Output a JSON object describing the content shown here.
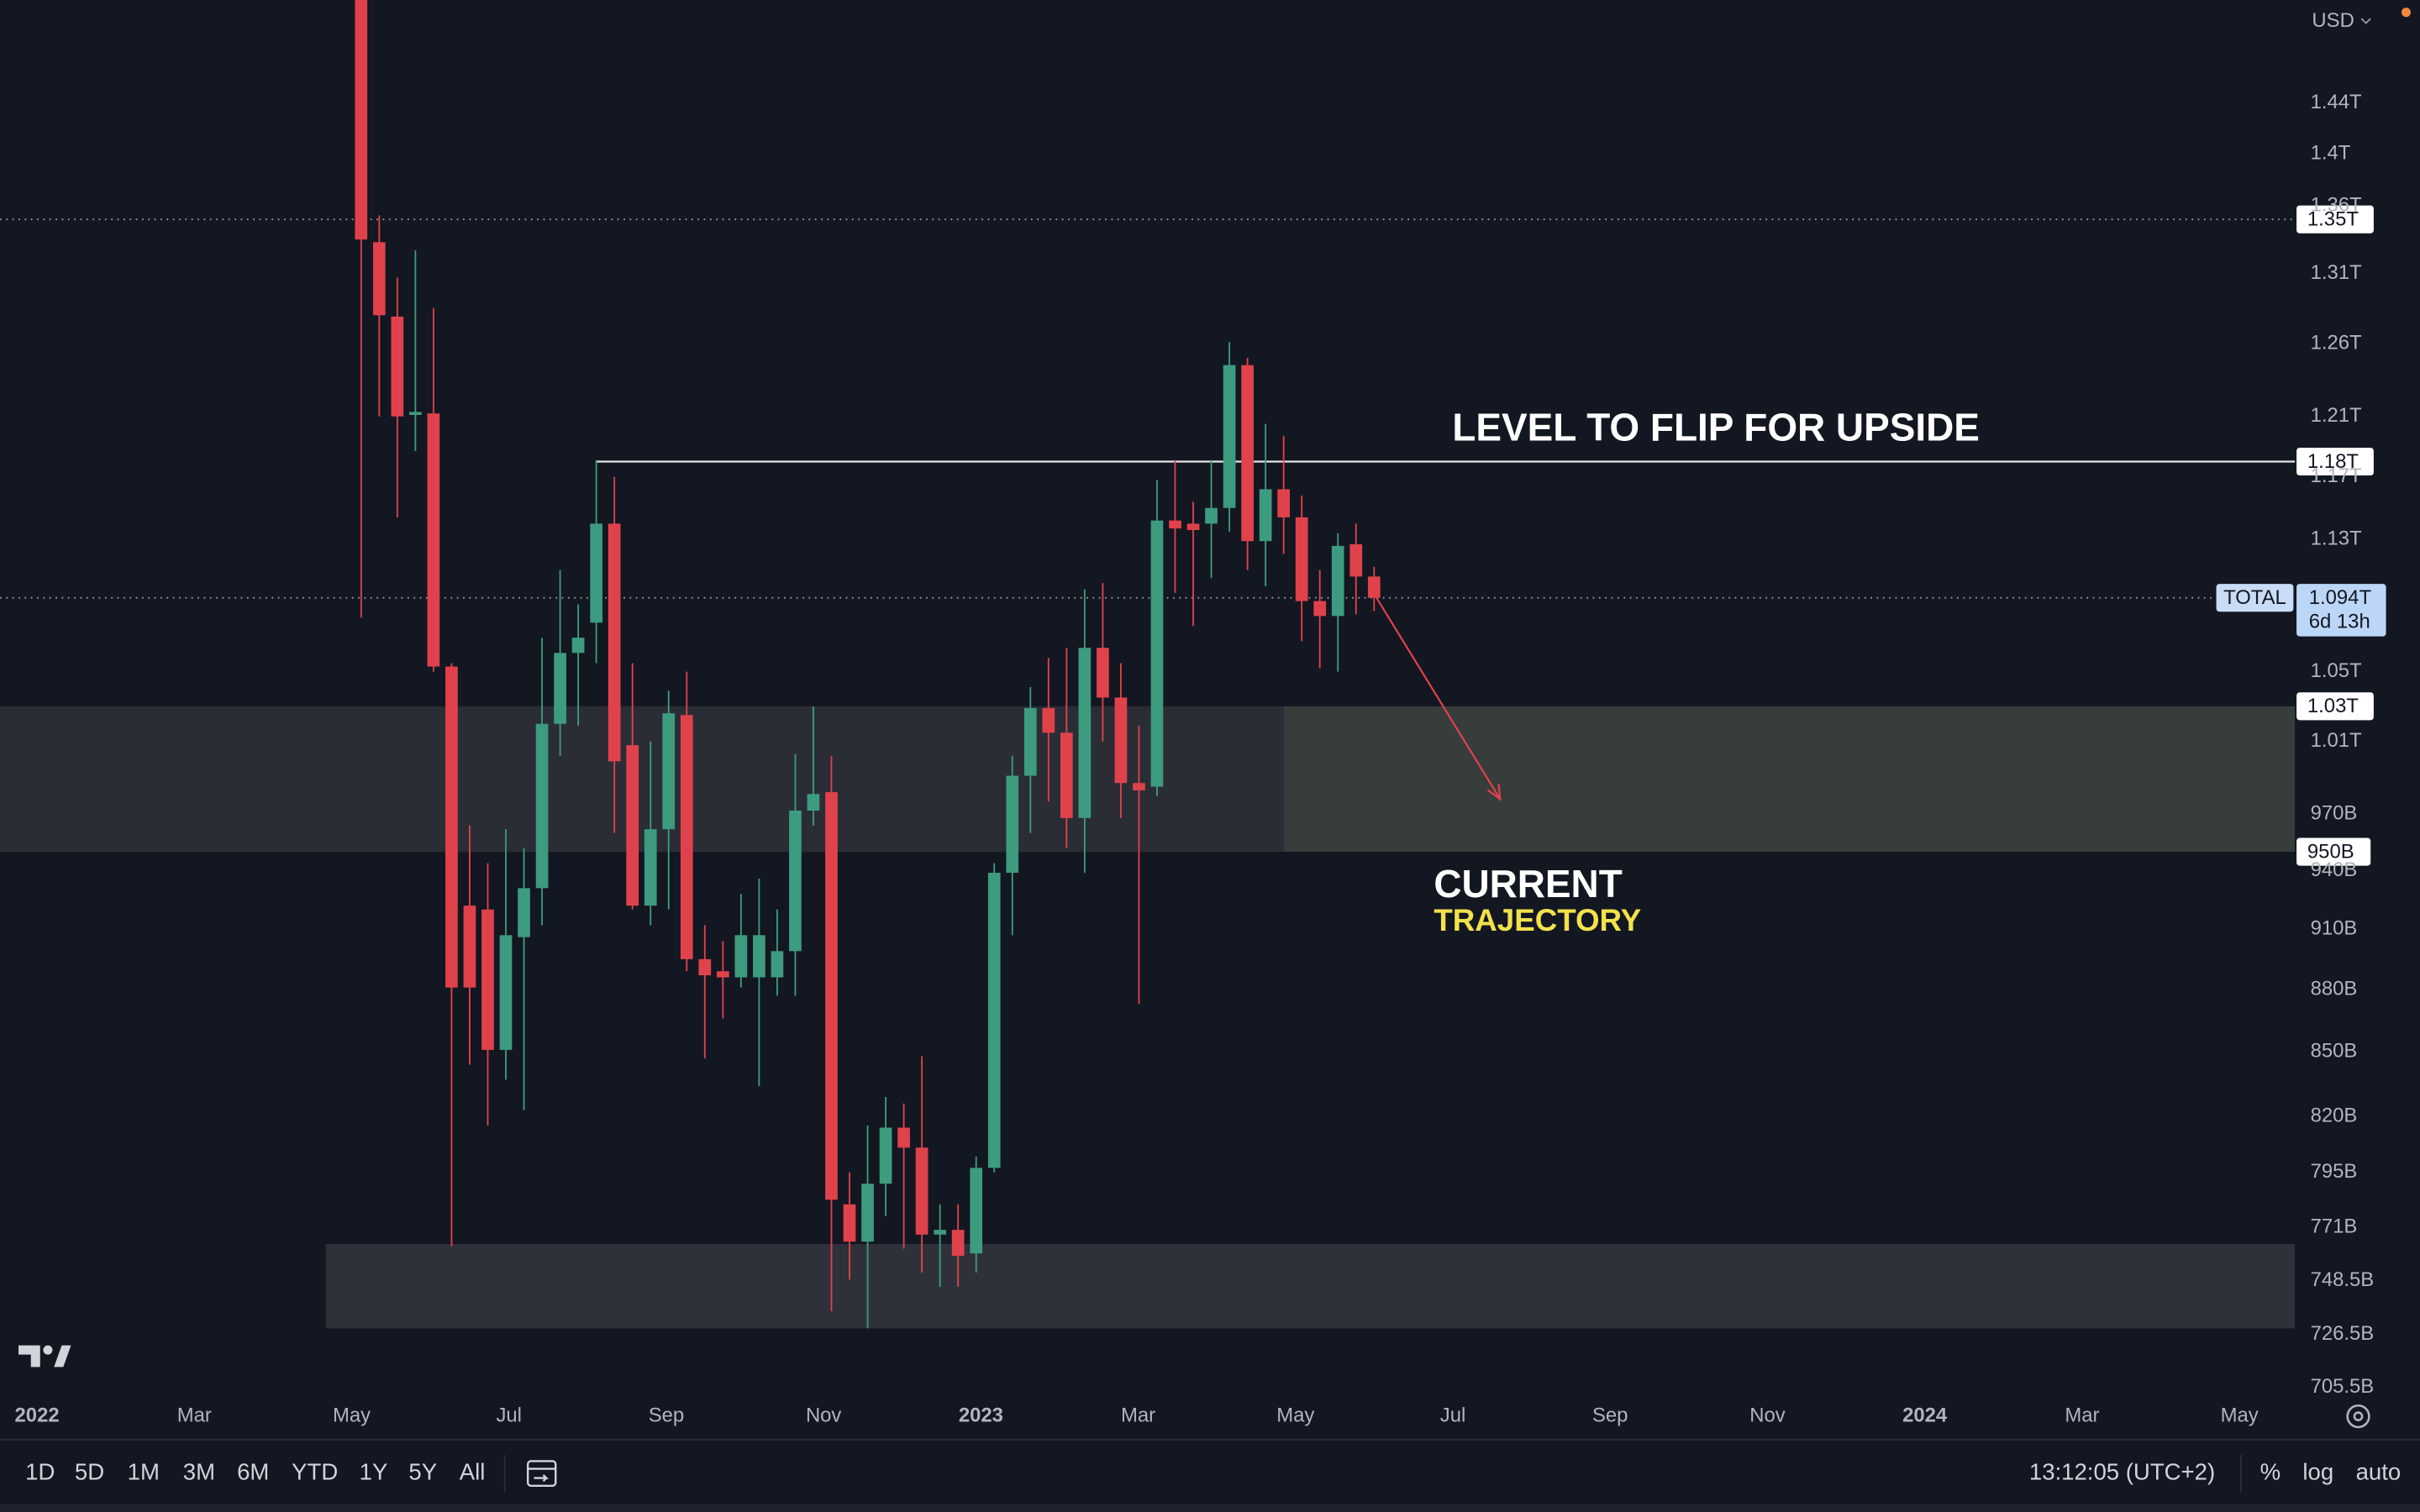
{
  "chart_data": {
    "type": "candlestick",
    "log_scale": true,
    "up_color": "#3d9b7f",
    "down_color": "#e0424b",
    "open": [
      1720000000000.0,
      1333000000000.0,
      1279000000000.0,
      1211000000000.0,
      1212000000000.0,
      1053000000000.0,
      922000000000.0,
      920000000000.0,
      851000000000.0,
      906000000000.0,
      931000000000.0,
      1020000000000.0,
      1061000000000.0,
      1079000000000.0,
      1140000000000.0,
      1008000000000.0,
      922000000000.0,
      962000000000.0,
      1025000000000.0,
      895000000000.0,
      889000000000.0,
      886000000000.0,
      886000000000.0,
      886000000000.0,
      899000000000.0,
      972000000000.0,
      982000000000.0,
      781000000000.0,
      765000000000.0,
      790000000000.0,
      815000000000.0,
      806000000000.0,
      768000000000.0,
      770000000000.0,
      760000000000.0,
      797000000000.0,
      939000000000.0,
      991000000000.0,
      1029000000000.0,
      1015000000000.0,
      968000000000.0,
      1064000000000.0,
      1035000000000.0,
      987000000000.0,
      985000000000.0,
      1142000000000.0,
      1140000000000.0,
      1140000000000.0,
      1150000000000.0,
      1245000000000.0,
      1129000000000.0,
      1162000000000.0,
      1144000000000.0,
      1092000000000.0,
      1083000000000.0,
      1127000000000.0,
      1107000000000.0
    ],
    "high": [
      1800000000000.0,
      1353000000000.0,
      1307000000000.0,
      1327000000000.0,
      1285000000000.0,
      1055000000000.0,
      964000000000.0,
      944000000000.0,
      962000000000.0,
      952000000000.0,
      1070000000000.0,
      1111000000000.0,
      1090000000000.0,
      1181000000000.0,
      1170000000000.0,
      1055000000000.0,
      1010000000000.0,
      1039000000000.0,
      1050000000000.0,
      912000000000.0,
      904000000000.0,
      928000000000.0,
      936000000000.0,
      920000000000.0,
      1003000000000.0,
      1030000000000.0,
      1002000000000.0,
      795000000000.0,
      816000000000.0,
      829000000000.0,
      826000000000.0,
      848000000000.0,
      781000000000.0,
      781000000000.0,
      802000000000.0,
      944000000000.0,
      1002000000000.0,
      1041000000000.0,
      1058000000000.0,
      1064000000000.0,
      1099000000000.0,
      1103000000000.0,
      1055000000000.0,
      1019000000000.0,
      1168000000000.0,
      1181000000000.0,
      1154000000000.0,
      1181000000000.0,
      1261000000000.0,
      1250000000000.0,
      1205000000000.0,
      1197000000000.0,
      1158000000000.0,
      1111000000000.0,
      1134000000000.0,
      1140000000000.0,
      1113000000000.0
    ],
    "low": [
      1082000000000.0,
      1210000000000.0,
      1144000000000.0,
      1187000000000.0,
      1050000000000.0,
      763000000000.0,
      844000000000.0,
      816000000000.0,
      837000000000.0,
      823000000000.0,
      912000000000.0,
      1002000000000.0,
      1019000000000.0,
      1055000000000.0,
      960000000000.0,
      920000000000.0,
      912000000000.0,
      920000000000.0,
      889000000000.0,
      847000000000.0,
      866000000000.0,
      881000000000.0,
      834000000000.0,
      877000000000.0,
      877000000000.0,
      964000000000.0,
      736000000000.0,
      749000000000.0,
      729000000000.0,
      776000000000.0,
      762000000000.0,
      752000000000.0,
      746000000000.0,
      746000000000.0,
      752000000000.0,
      795000000000.0,
      907000000000.0,
      960000000000.0,
      977000000000.0,
      952000000000.0,
      939000000000.0,
      1010000000000.0,
      968000000000.0,
      873000000000.0,
      980000000000.0,
      1097000000000.0,
      1077000000000.0,
      1106000000000.0,
      1135000000000.0,
      1111000000000.0,
      1101000000000.0,
      1121000000000.0,
      1068000000000.0,
      1052000000000.0,
      1050000000000.0,
      1084000000000.0,
      1086000000000.0
    ],
    "close": [
      1335000000000.0,
      1280000000000.0,
      1210000000000.0,
      1213000000000.0,
      1053000000000.0,
      881000000000.0,
      881000000000.0,
      851000000000.0,
      907000000000.0,
      931000000000.0,
      1020000000000.0,
      1061000000000.0,
      1070000000000.0,
      1140000000000.0,
      999000000000.0,
      922000000000.0,
      962000000000.0,
      1026000000000.0,
      895000000000.0,
      887000000000.0,
      886000000000.0,
      907000000000.0,
      907000000000.0,
      899000000000.0,
      972000000000.0,
      981000000000.0,
      783000000000.0,
      765000000000.0,
      790000000000.0,
      815000000000.0,
      806000000000.0,
      768000000000.0,
      770000000000.0,
      759000000000.0,
      797000000000.0,
      939000000000.0,
      991000000000.0,
      1029000000000.0,
      1015000000000.0,
      968000000000.0,
      1064000000000.0,
      1035000000000.0,
      987000000000.0,
      983000000000.0,
      1142000000000.0,
      1137000000000.0,
      1136000000000.0,
      1150000000000.0,
      1245000000000.0,
      1129000000000.0,
      1162000000000.0,
      1144000000000.0,
      1092000000000.0,
      1083000000000.0,
      1126000000000.0,
      1107000000000.0,
      1094000000000.0
    ],
    "ylim": [
      702000000000.0,
      1525000000000.0
    ],
    "yticks": [
      {
        "value": 1440000000000.0,
        "label": "1.44T"
      },
      {
        "value": 1400000000000.0,
        "label": "1.4T"
      },
      {
        "value": 1360000000000.0,
        "label": "1.36T"
      },
      {
        "value": 1310000000000.0,
        "label": "1.31T"
      },
      {
        "value": 1260000000000.0,
        "label": "1.26T"
      },
      {
        "value": 1210000000000.0,
        "label": "1.21T"
      },
      {
        "value": 1170000000000.0,
        "label": "1.17T"
      },
      {
        "value": 1130000000000.0,
        "label": "1.13T"
      },
      {
        "value": 1050000000000.0,
        "label": "1.05T"
      },
      {
        "value": 1010000000000.0,
        "label": "1.01T"
      },
      {
        "value": 970000000000.0,
        "label": "970B"
      },
      {
        "value": 940000000000.0,
        "label": "940B"
      },
      {
        "value": 910000000000.0,
        "label": "910B"
      },
      {
        "value": 880000000000.0,
        "label": "880B"
      },
      {
        "value": 850000000000.0,
        "label": "850B"
      },
      {
        "value": 820000000000.0,
        "label": "820B"
      },
      {
        "value": 795000000000.0,
        "label": "795B"
      },
      {
        "value": 771000000000.0,
        "label": "771B"
      },
      {
        "value": 748500000000.0,
        "label": "748.5B"
      },
      {
        "value": 726500000000.0,
        "label": "726.5B"
      },
      {
        "value": 705500000000.0,
        "label": "705.5B"
      }
    ],
    "xticks": [
      "2022",
      "Mar",
      "May",
      "Jul",
      "Sep",
      "Nov",
      "2023",
      "Mar",
      "May",
      "Jul",
      "Sep",
      "Nov",
      "2024",
      "Mar",
      "May"
    ],
    "price_levels": [
      {
        "value": 1350000000000.0,
        "label": "1.35T",
        "line": "dotted"
      },
      {
        "value": 1180000000000.0,
        "label": "1.18T",
        "line": "solid"
      },
      {
        "value": 1030000000000.0,
        "label": "1.03T"
      },
      {
        "value": 950000000000.0,
        "label": "950B"
      }
    ],
    "zones": [
      {
        "top": 1030000000000.0,
        "bottom": 950000000000.0
      },
      {
        "top": 764000000000.0,
        "bottom": 729000000000.0
      }
    ],
    "symbol": "TOTAL",
    "last_price_label": "1.094T",
    "countdown": "6d 13h",
    "currency": "USD",
    "annotations": [
      {
        "text": "LEVEL TO FLIP FOR UPSIDE",
        "color": "#ffffff"
      },
      {
        "text": "CURRENT",
        "color": "#ffffff"
      },
      {
        "text": "TRAJECTORY",
        "color": "#f2e14c"
      }
    ]
  },
  "ui": {
    "ranges": [
      "1D",
      "5D",
      "1M",
      "3M",
      "6M",
      "YTD",
      "1Y",
      "5Y",
      "All"
    ],
    "clock": "13:12:05 (UTC+2)",
    "scale_buttons": [
      "%",
      "log",
      "auto"
    ],
    "active_scale": "log"
  }
}
